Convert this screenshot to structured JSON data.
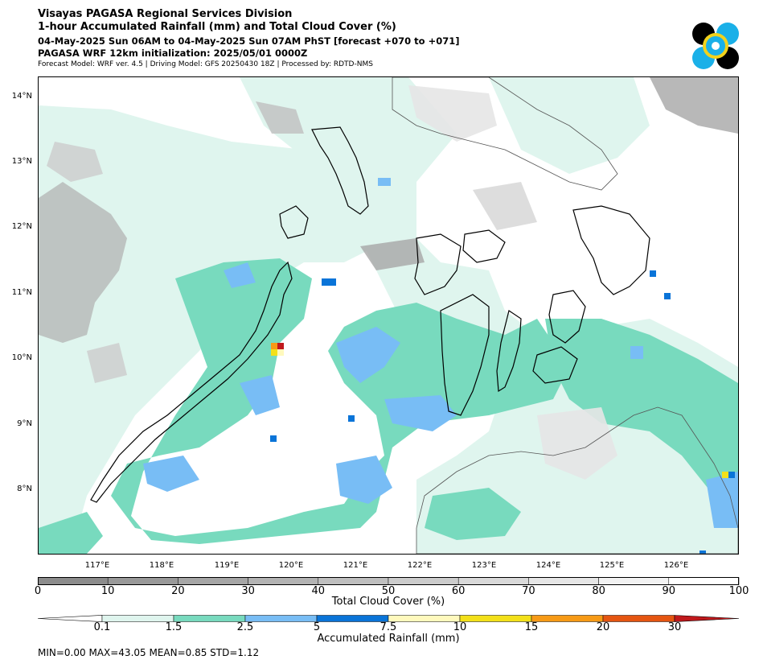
{
  "header": {
    "line1": "Visayas PAGASA Regional Services Division",
    "line2": "1-hour Accumulated Rainfall (mm) and Total Cloud Cover (%)",
    "line3": "04-May-2025 Sun 06AM to 04-May-2025 Sun 07AM PhST [forecast +070 to +071]",
    "line4": "PAGASA WRF 12km initialization: 2025/05/01 0000Z",
    "line5": "Forecast Model: WRF ver. 4.5 | Driving Model: GFS 20250430 18Z | Processed by: RDTD-NMS"
  },
  "map": {
    "lat_labels": [
      "14°N",
      "13°N",
      "12°N",
      "11°N",
      "10°N",
      "9°N",
      "8°N"
    ],
    "lon_labels": [
      "117°E",
      "118°E",
      "119°E",
      "120°E",
      "121°E",
      "122°E",
      "123°E",
      "124°E",
      "125°E",
      "126°E"
    ],
    "colors": {
      "rain_0_1": "#dff5ee",
      "rain_1_5": "#78dabe",
      "rain_2_5": "#78bdf5",
      "rain_5": "#0a74d8",
      "rain_7_5": "#fff9bd",
      "rain_10": "#f3e019",
      "rain_15": "#f79a16",
      "rain_20": "#e55511",
      "rain_30": "#c0191c"
    }
  },
  "cloud_legend": {
    "title": "Total Cloud Cover (%)",
    "ticks": [
      "0",
      "10",
      "20",
      "30",
      "40",
      "50",
      "60",
      "70",
      "80",
      "90",
      "100"
    ],
    "colors": [
      "#8c8c8c",
      "#999999",
      "#a6a6a6",
      "#b3b3b3",
      "#bfbfbf",
      "#cccccc",
      "#d9d9d9",
      "#e6e6e6",
      "#f2f2f2",
      "#ffffff"
    ]
  },
  "rain_legend": {
    "title": "Accumulated Rainfall (mm)",
    "ticks": [
      "0.1",
      "1.5",
      "2.5",
      "5",
      "7.5",
      "10",
      "15",
      "20",
      "30"
    ],
    "colors": [
      "#dff5ee",
      "#78dabe",
      "#78bdf5",
      "#0a74d8",
      "#fff9bd",
      "#f3e019",
      "#f79a16",
      "#e55511"
    ],
    "under_color": "#ffffff",
    "over_color": "#c0191c"
  },
  "stats": "MIN=0.00   MAX=43.05   MEAN=0.85   STD=1.12"
}
